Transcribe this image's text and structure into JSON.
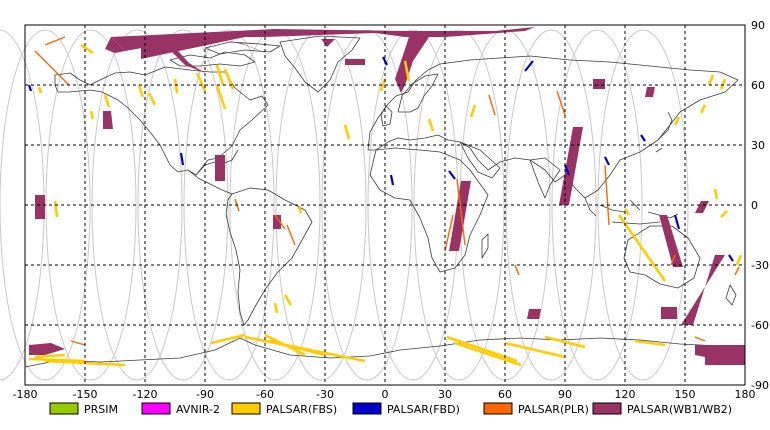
{
  "map": {
    "lon_range": [
      -180,
      180
    ],
    "lat_range": [
      -90,
      90
    ],
    "lon_ticks": [
      -180,
      -150,
      -120,
      -90,
      -60,
      -30,
      0,
      30,
      60,
      90,
      120,
      150,
      180
    ],
    "lat_ticks": [
      90,
      60,
      30,
      0,
      -30,
      -60,
      -90
    ],
    "lon_tick_labels": [
      "-180",
      "-150",
      "-120",
      "-90",
      "-60",
      "-30",
      "0",
      "30",
      "60",
      "90",
      "120",
      "150",
      "180"
    ],
    "lat_tick_labels": [
      "90",
      "60",
      "30",
      "0",
      "-30",
      "-60",
      "-90"
    ],
    "grid": "dashed",
    "orbit_color": "#c8c8c8"
  },
  "legend": {
    "placement": "bottom",
    "items": [
      {
        "label": "PRSIM",
        "color": "#99cc00"
      },
      {
        "label": "AVNIR-2",
        "color": "#ff00ff"
      },
      {
        "label": "PALSAR(FBS)",
        "color": "#ffcc00"
      },
      {
        "label": "PALSAR(FBD)",
        "color": "#0000cc"
      },
      {
        "label": "PALSAR(PLR)",
        "color": "#ff6600"
      },
      {
        "label": "PALSAR(WB1/WB2)",
        "color": "#993366"
      }
    ]
  },
  "observations": {
    "wb": [
      [
        [
          -137,
          84
        ],
        [
          -55,
          88
        ],
        [
          10,
          87
        ],
        [
          55,
          87
        ],
        [
          75,
          89
        ],
        [
          70,
          87
        ],
        [
          30,
          84
        ],
        [
          10,
          84
        ],
        [
          -5,
          86
        ],
        [
          -60,
          84
        ],
        [
          -90,
          84
        ],
        [
          -130,
          77
        ]
      ],
      [
        [
          -137,
          84
        ],
        [
          -130,
          77
        ],
        [
          -135,
          76
        ],
        [
          -140,
          78
        ]
      ],
      [
        [
          -115,
          84
        ],
        [
          -110,
          80
        ],
        [
          -100,
          70
        ],
        [
          -90,
          66
        ],
        [
          -98,
          71
        ],
        [
          -108,
          82
        ]
      ],
      [
        [
          -78,
          82
        ],
        [
          -70,
          80
        ],
        [
          -60,
          76
        ],
        [
          -55,
          73
        ],
        [
          -62,
          77
        ],
        [
          -72,
          81
        ]
      ],
      [
        [
          12,
          84
        ],
        [
          22,
          84
        ],
        [
          14,
          72
        ],
        [
          10,
          60
        ],
        [
          8,
          56
        ],
        [
          5,
          63
        ],
        [
          8,
          72
        ]
      ],
      [
        [
          -32,
          83
        ],
        [
          -25,
          83
        ],
        [
          -29,
          79
        ]
      ],
      [
        [
          -122,
          73
        ],
        [
          -70,
          84
        ],
        [
          -75,
          86
        ],
        [
          -122,
          84
        ]
      ],
      [
        [
          -20,
          73
        ],
        [
          -10,
          73
        ],
        [
          -10,
          70
        ],
        [
          -20,
          70
        ]
      ],
      [
        [
          -141,
          47
        ],
        [
          -137,
          47
        ],
        [
          -136,
          38
        ],
        [
          -141,
          38
        ]
      ],
      [
        [
          -85,
          25
        ],
        [
          -80,
          25
        ],
        [
          -80,
          12
        ],
        [
          -85,
          12
        ]
      ],
      [
        [
          -175,
          5
        ],
        [
          -170,
          5
        ],
        [
          -170,
          -7
        ],
        [
          -175,
          -7
        ]
      ],
      [
        [
          -56,
          -5
        ],
        [
          -52,
          -5
        ],
        [
          -52,
          -12
        ],
        [
          -56,
          -12
        ]
      ],
      [
        [
          38,
          12
        ],
        [
          43,
          12
        ],
        [
          37,
          -23
        ],
        [
          32,
          -23
        ]
      ],
      [
        [
          94,
          39
        ],
        [
          99,
          39
        ],
        [
          92,
          0
        ],
        [
          87,
          0
        ]
      ],
      [
        [
          104,
          63
        ],
        [
          110,
          63
        ],
        [
          110,
          58
        ],
        [
          104,
          58
        ]
      ],
      [
        [
          131,
          59
        ],
        [
          135,
          59
        ],
        [
          134,
          54
        ],
        [
          130,
          54
        ]
      ],
      [
        [
          149,
          -31
        ],
        [
          144,
          -31
        ],
        [
          137,
          -5
        ],
        [
          141,
          -5
        ]
      ],
      [
        [
          158,
          2
        ],
        [
          162,
          2
        ],
        [
          159,
          -4
        ],
        [
          155,
          -4
        ]
      ],
      [
        [
          170,
          -25
        ],
        [
          165,
          -25
        ],
        [
          154,
          -60
        ],
        [
          148,
          -60
        ]
      ],
      [
        [
          146,
          -51
        ],
        [
          138,
          -51
        ],
        [
          138,
          -57
        ],
        [
          146,
          -57
        ]
      ],
      [
        [
          -178,
          -70
        ],
        [
          -167,
          -69
        ],
        [
          -160,
          -72
        ],
        [
          -170,
          -75
        ],
        [
          -178,
          -75
        ]
      ],
      [
        [
          155,
          -70
        ],
        [
          180,
          -70
        ],
        [
          180,
          -77
        ],
        [
          165,
          -77
        ],
        [
          155,
          -75
        ]
      ],
      [
        [
          160,
          -76
        ],
        [
          180,
          -76
        ],
        [
          180,
          -80
        ],
        [
          160,
          -80
        ]
      ],
      [
        [
          72,
          -52
        ],
        [
          78,
          -52
        ],
        [
          77,
          -57
        ],
        [
          71,
          -57
        ]
      ]
    ],
    "fbs": [
      [
        [
          -152,
          80
        ],
        [
          -146,
          76
        ]
      ],
      [
        [
          -173,
          59
        ],
        [
          -172,
          56
        ]
      ],
      [
        [
          -123,
          60
        ],
        [
          -121,
          54
        ]
      ],
      [
        [
          -105,
          63
        ],
        [
          -104,
          56
        ]
      ],
      [
        [
          -94,
          66
        ],
        [
          -90,
          57
        ]
      ],
      [
        [
          -84,
          60
        ],
        [
          -80,
          48
        ]
      ],
      [
        [
          -80,
          68
        ],
        [
          -76,
          58
        ]
      ],
      [
        [
          -84,
          70
        ],
        [
          -81,
          60
        ]
      ],
      [
        [
          -118,
          56
        ],
        [
          -115,
          50
        ]
      ],
      [
        [
          -140,
          55
        ],
        [
          -138,
          49
        ]
      ],
      [
        [
          -147,
          47
        ],
        [
          -146,
          43
        ]
      ],
      [
        [
          -165,
          2
        ],
        [
          -164,
          -6
        ]
      ],
      [
        [
          -43,
          -1
        ],
        [
          -42,
          -4
        ]
      ],
      [
        [
          -47,
          -50
        ],
        [
          -50,
          -45
        ]
      ],
      [
        [
          -55,
          -49
        ],
        [
          -54,
          -54
        ]
      ],
      [
        [
          -87,
          -69
        ],
        [
          -70,
          -65
        ]
      ],
      [
        [
          -60,
          -65
        ],
        [
          -40,
          -75
        ]
      ],
      [
        [
          -30,
          -75
        ],
        [
          -58,
          -68
        ]
      ],
      [
        [
          -70,
          -66
        ],
        [
          -10,
          -78
        ]
      ],
      [
        [
          -170,
          -78
        ],
        [
          -130,
          -80
        ]
      ],
      [
        [
          -178,
          -77
        ],
        [
          -150,
          -78
        ]
      ],
      [
        [
          -175,
          -76
        ],
        [
          -160,
          -75
        ]
      ],
      [
        [
          10,
          72
        ],
        [
          12,
          62
        ]
      ],
      [
        [
          45,
          50
        ],
        [
          43,
          44
        ]
      ],
      [
        [
          -20,
          40
        ],
        [
          -18,
          33
        ]
      ],
      [
        [
          22,
          43
        ],
        [
          24,
          37
        ]
      ],
      [
        [
          117,
          -5
        ],
        [
          140,
          -38
        ]
      ],
      [
        [
          120,
          -2
        ],
        [
          122,
          -5
        ]
      ],
      [
        [
          31,
          -66
        ],
        [
          66,
          -78
        ]
      ],
      [
        [
          35,
          -69
        ],
        [
          68,
          -80
        ]
      ],
      [
        [
          60,
          -69
        ],
        [
          90,
          -76
        ]
      ],
      [
        [
          80,
          -66
        ],
        [
          100,
          -71
        ]
      ],
      [
        [
          125,
          -68
        ],
        [
          140,
          -70
        ]
      ],
      [
        [
          170,
          63
        ],
        [
          168,
          58
        ]
      ],
      [
        [
          164,
          65
        ],
        [
          162,
          60
        ]
      ],
      [
        [
          160,
          50
        ],
        [
          158,
          46
        ]
      ],
      [
        [
          147,
          44
        ],
        [
          145,
          40
        ]
      ],
      [
        [
          171,
          -3
        ],
        [
          168,
          -6
        ]
      ],
      [
        [
          165,
          8
        ],
        [
          166,
          3
        ]
      ],
      [
        [
          178,
          -25
        ],
        [
          176,
          -30
        ]
      ],
      [
        [
          0,
          63
        ],
        [
          -2,
          57
        ]
      ]
    ],
    "fbd": [
      [
        [
          -178,
          60
        ],
        [
          -177,
          57
        ]
      ],
      [
        [
          -102,
          26
        ],
        [
          -101,
          20
        ]
      ],
      [
        [
          3,
          15
        ],
        [
          4,
          10
        ]
      ],
      [
        [
          32,
          17
        ],
        [
          35,
          13
        ]
      ],
      [
        [
          90,
          20
        ],
        [
          92,
          15
        ]
      ],
      [
        [
          110,
          24
        ],
        [
          112,
          20
        ]
      ],
      [
        [
          128,
          35
        ],
        [
          130,
          32
        ]
      ],
      [
        [
          145,
          -5
        ],
        [
          147,
          -12
        ]
      ],
      [
        [
          172,
          -25
        ],
        [
          174,
          -28
        ]
      ],
      [
        [
          70,
          67
        ],
        [
          74,
          72
        ]
      ],
      [
        [
          -1,
          74
        ],
        [
          1,
          70
        ]
      ]
    ],
    "plr": [
      [
        [
          -175,
          77
        ],
        [
          -158,
          60
        ]
      ],
      [
        [
          -160,
          84
        ],
        [
          -170,
          80
        ]
      ],
      [
        [
          -55,
          -5
        ],
        [
          -50,
          -12
        ]
      ],
      [
        [
          36,
          13
        ],
        [
          40,
          -20
        ]
      ],
      [
        [
          30,
          -23
        ],
        [
          34,
          -5
        ]
      ],
      [
        [
          -75,
          3
        ],
        [
          -73,
          -3
        ]
      ],
      [
        [
          52,
          55
        ],
        [
          55,
          45
        ]
      ],
      [
        [
          86,
          57
        ],
        [
          90,
          45
        ]
      ],
      [
        [
          110,
          20
        ],
        [
          112,
          -10
        ]
      ],
      [
        [
          -49,
          -10
        ],
        [
          -45,
          -20
        ]
      ],
      [
        [
          65,
          -30
        ],
        [
          67,
          -35
        ]
      ],
      [
        [
          145,
          -25
        ],
        [
          143,
          -30
        ]
      ],
      [
        [
          177,
          -31
        ],
        [
          175,
          -35
        ]
      ],
      [
        [
          155,
          -66
        ],
        [
          160,
          -68
        ]
      ],
      [
        [
          -157,
          -68
        ],
        [
          -150,
          -70
        ]
      ]
    ]
  }
}
